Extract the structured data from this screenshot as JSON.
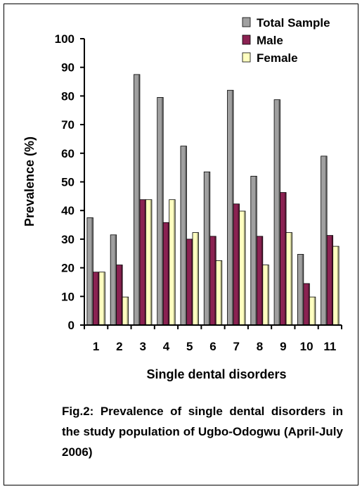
{
  "chart_data": {
    "type": "bar",
    "title": "",
    "xlabel": "Single dental disorders",
    "ylabel": "Prevalence (%)",
    "ylim": [
      0,
      100
    ],
    "yticks": [
      "0",
      "10",
      "20",
      "30",
      "40",
      "50",
      "60",
      "70",
      "80",
      "90",
      "100"
    ],
    "categories": [
      "1",
      "2",
      "3",
      "4",
      "5",
      "6",
      "7",
      "8",
      "9",
      "10",
      "11"
    ],
    "series": [
      {
        "name": "Total Sample",
        "color": "#a0a0a0",
        "values": [
          37.5,
          31.5,
          87.5,
          79.5,
          62.5,
          53.5,
          82,
          52,
          78.7,
          24.7,
          59
        ]
      },
      {
        "name": "Male",
        "color": "#8b2252",
        "values": [
          18.5,
          21,
          43.8,
          35.8,
          30,
          31,
          42.3,
          31,
          46.3,
          14.5,
          31.3
        ]
      },
      {
        "name": "Female",
        "color": "#ffffc0",
        "values": [
          18.5,
          9.8,
          43.8,
          43.8,
          32.3,
          22.5,
          39.8,
          21,
          32.3,
          9.8,
          27.5
        ]
      }
    ],
    "grid": false,
    "legend_position": "top-right"
  },
  "caption": "Fig.2: Prevalence of single dental disorders in the study population of Ugbo-Odogwu (April-July 2006)"
}
